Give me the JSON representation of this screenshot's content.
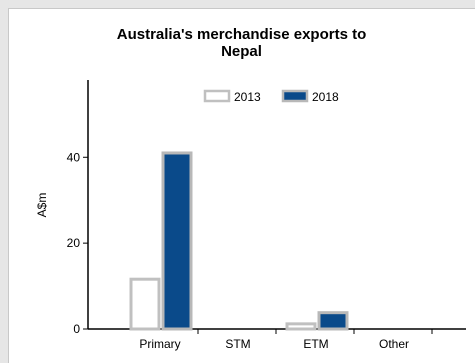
{
  "chart_data": {
    "type": "bar",
    "title_lines": [
      "Australia's merchandise exports to",
      "Nepal"
    ],
    "ylabel": "A$m",
    "xlabel": "",
    "categories": [
      "Primary",
      "STM",
      "ETM",
      "Other"
    ],
    "series": [
      {
        "name": "2013",
        "values": [
          11.6,
          0,
          1.2,
          0
        ],
        "color": "#ffffff",
        "border": "#c0c0c0"
      },
      {
        "name": "2018",
        "values": [
          41.0,
          0,
          3.8,
          0
        ],
        "color": "#0a4a8a",
        "border": "#b8b8b8"
      }
    ],
    "ylim": [
      0,
      58
    ],
    "yticks": [
      0,
      20,
      40
    ],
    "grid": false,
    "legend": "top-center"
  }
}
